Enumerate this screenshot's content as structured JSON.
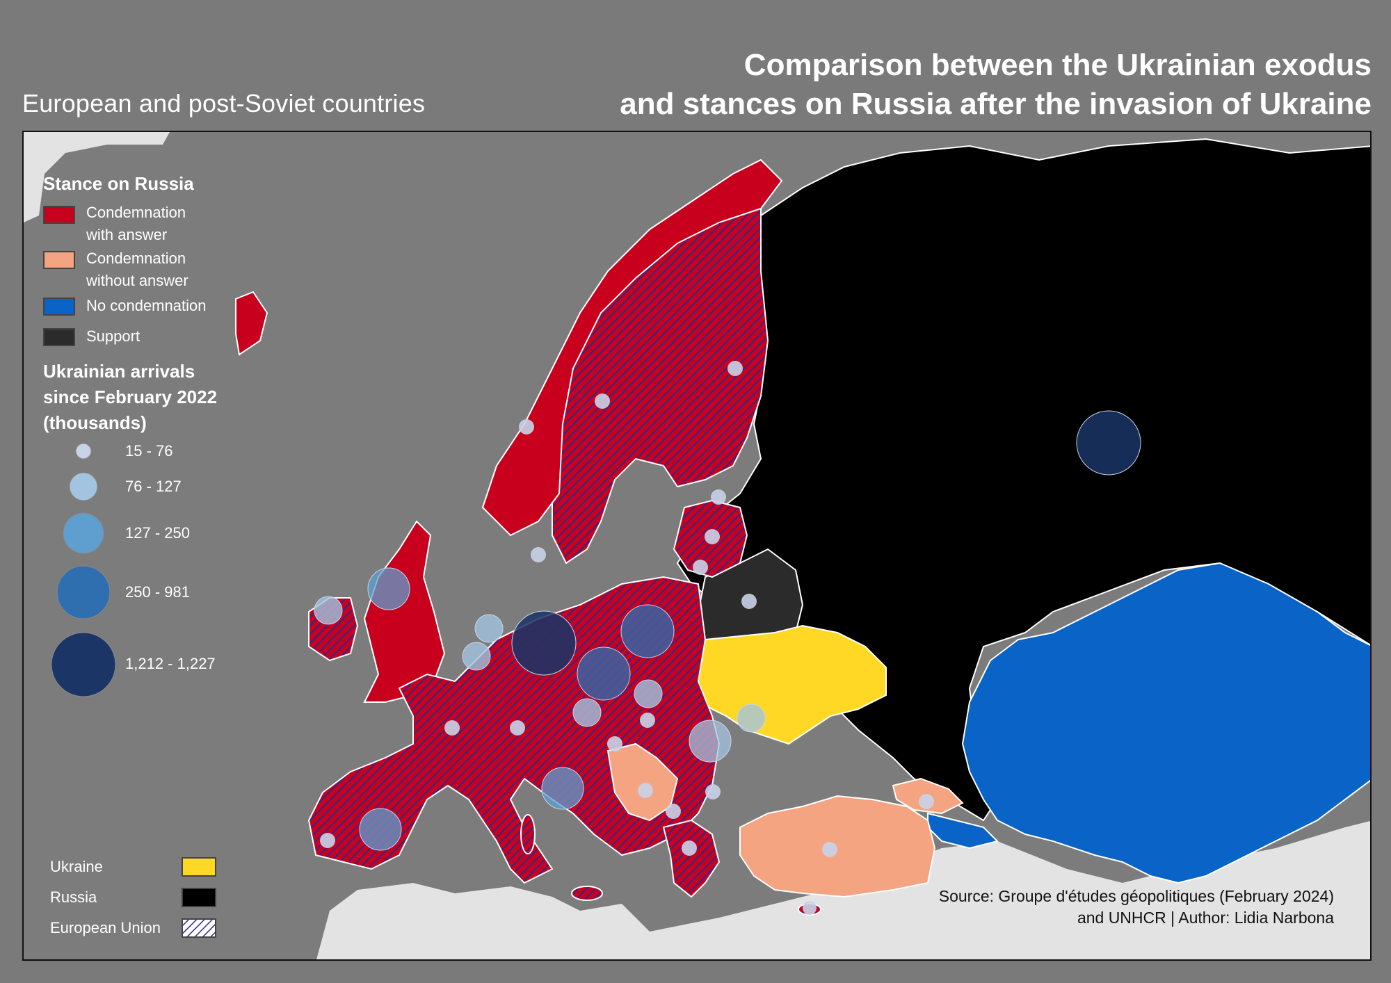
{
  "header": {
    "subtitle": "European and post-Soviet countries",
    "title_line1": "Comparison between the Ukrainian exodus",
    "title_line2": "and stances on Russia after the invasion of Ukraine"
  },
  "legend_stance": {
    "title": "Stance on Russia",
    "items": [
      {
        "label_line1": "Condemnation",
        "label_line2": "with answer",
        "color": "#c8001e"
      },
      {
        "label_line1": "Condemnation",
        "label_line2": "without answer",
        "color": "#f5a482"
      },
      {
        "label_line1": "No condemnation",
        "label_line2": "",
        "color": "#0a64c8"
      },
      {
        "label_line1": "Support",
        "label_line2": "",
        "color": "#2b2b2b"
      }
    ]
  },
  "legend_arrivals": {
    "title_line1": "Ukrainian arrivals",
    "title_line2": "since February 2022",
    "title_line3": "(thousands)",
    "classes": [
      {
        "label": "15 - 76",
        "color": "#c9d3e8"
      },
      {
        "label": "76 - 127",
        "color": "#a3c4e0"
      },
      {
        "label": "127 - 250",
        "color": "#5f9fcf"
      },
      {
        "label": "250 - 981",
        "color": "#2f6fb0"
      },
      {
        "label": "1,212 - 1,227",
        "color": "#1a3566"
      }
    ]
  },
  "legend_special": {
    "items": [
      {
        "label": "Ukraine",
        "color": "#ffd826"
      },
      {
        "label": "Russia",
        "color": "#000000"
      },
      {
        "label": "European Union",
        "pattern": "hatched-blue"
      }
    ]
  },
  "source": {
    "line1": "Source: Groupe d'études géopolitiques (February 2024)",
    "line2": "and UNHCR | Author: Lidia Narbona"
  },
  "colors": {
    "background": "#7a7a7a",
    "land_outside": "#e3e3e3",
    "condemnation_with_answer": "#c8001e",
    "condemnation_without_answer": "#f5a482",
    "no_condemnation": "#0a64c8",
    "support": "#2b2b2b",
    "ukraine": "#ffd826",
    "russia": "#000000",
    "eu_hatch": "#2a2a8a"
  }
}
